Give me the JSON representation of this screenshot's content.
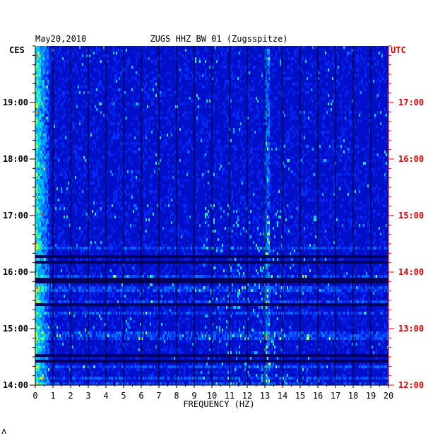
{
  "chart_data": {
    "type": "heatmap",
    "date": "May20,2010",
    "title": "ZUGS HHZ BW 01 (Zugsspitze)",
    "left_tz": "CES",
    "right_tz": "UTC",
    "xlabel": "FREQUENCY (HZ)",
    "x_ticks": [
      "0",
      "1",
      "2",
      "3",
      "4",
      "5",
      "6",
      "7",
      "8",
      "9",
      "10",
      "11",
      "12",
      "13",
      "14",
      "15",
      "16",
      "17",
      "18",
      "19",
      "20"
    ],
    "xlim": [
      0,
      20
    ],
    "left_time_ticks": [
      "19:00",
      "18:00",
      "17:00",
      "16:00",
      "15:00",
      "14:00"
    ],
    "right_time_ticks": [
      "17:00",
      "16:00",
      "15:00",
      "14:00",
      "13:00",
      "12:00"
    ],
    "colors": {
      "left_axis": "#000000",
      "right_axis": "#dd0000",
      "grid": "#000000"
    }
  },
  "footer_mark": "ʌ"
}
